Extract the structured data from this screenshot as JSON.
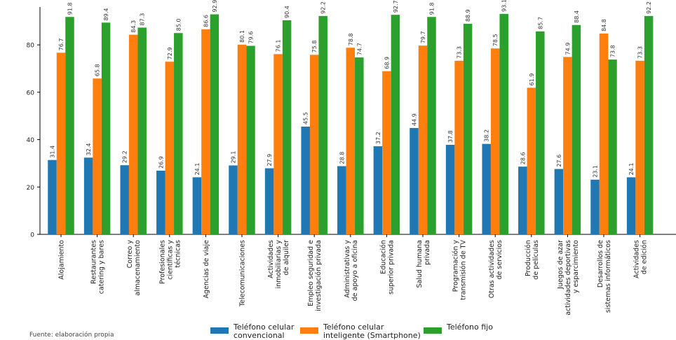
{
  "chart_data": {
    "type": "bar",
    "categories": [
      "Alojamiento",
      "Restaurantes\ncatering y bares",
      "Correo y\nalmacenamiento",
      "Profesionales\ncientíficas y\ntécnicas",
      "Agencias de viaje",
      "Telecomunicaciones",
      "Actividades\ninmobiliarias y\nde alquiler",
      "Empleo seguridad e\ninvestigación privada",
      "Administrativas y\nde apoyo a oficina",
      "Educación\nsuperior privada",
      "Salud humana\nprivada",
      "Programación y\ntransmisión de TV",
      "Otras actividades\nde servicios",
      "Producción\nde películas",
      "Juegos de azar\nactividades deportivas\ny esparcimiento",
      "Desarrollos de\nsistemas informáticos",
      "Actividades\nde edición"
    ],
    "series": [
      {
        "name": "Teléfono celular convencional",
        "color": "#1f77b4",
        "values": [
          31.4,
          32.4,
          29.2,
          26.9,
          24.1,
          29.1,
          27.9,
          45.5,
          28.8,
          37.2,
          44.9,
          37.8,
          38.2,
          28.6,
          27.6,
          23.1,
          24.1
        ]
      },
      {
        "name": "Teléfono celular inteligente (Smartphone)",
        "color": "#ff7f0e",
        "values": [
          76.7,
          65.8,
          84.3,
          72.9,
          86.6,
          80.1,
          76.1,
          75.8,
          78.8,
          68.9,
          79.7,
          73.3,
          78.5,
          61.9,
          74.9,
          84.8,
          73.3
        ]
      },
      {
        "name": "Teléfono fijo",
        "color": "#2ca02c",
        "values": [
          91.8,
          89.4,
          87.3,
          85.0,
          92.9,
          79.6,
          90.4,
          92.2,
          74.7,
          92.7,
          91.8,
          88.9,
          93.1,
          85.7,
          88.4,
          73.8,
          92.2
        ]
      }
    ],
    "yticks": [
      "0",
      "20",
      "40",
      "60",
      "80"
    ],
    "ylim": [
      0,
      96
    ],
    "grid": false,
    "legend_position": "bottom"
  },
  "legend": {
    "items": [
      {
        "label": "Teléfono celular\nconvencional",
        "color": "#1f77b4"
      },
      {
        "label": "Teléfono celular\ninteligente (Smartphone)",
        "color": "#ff7f0e"
      },
      {
        "label": "Teléfono fijo",
        "color": "#2ca02c"
      }
    ]
  },
  "footnote": "Fuente: elaboración propia"
}
